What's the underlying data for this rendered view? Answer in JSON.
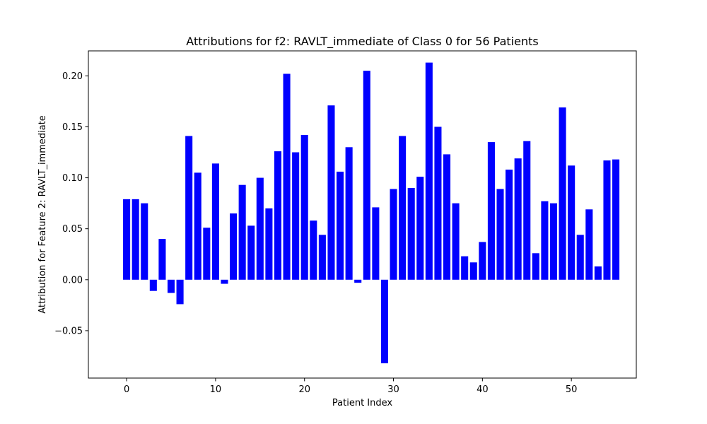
{
  "chart_data": {
    "type": "bar",
    "title": "Attributions for f2: RAVLT_immediate of Class 0 for 56 Patients",
    "xlabel": "Patient Index",
    "ylabel": "Attribution for Feature 2: RAVLT_immediate",
    "bar_color": "#0000ff",
    "xlim": [
      -4.3,
      57.3
    ],
    "ylim": [
      -0.0965,
      0.2245
    ],
    "xticks": [
      0,
      10,
      20,
      30,
      40,
      50
    ],
    "xtick_labels": [
      "0",
      "10",
      "20",
      "30",
      "40",
      "50"
    ],
    "yticks": [
      -0.05,
      0.0,
      0.05,
      0.1,
      0.15,
      0.2
    ],
    "ytick_labels": [
      "−0.05",
      "0.00",
      "0.05",
      "0.10",
      "0.15",
      "0.20"
    ],
    "grid": false,
    "x": [
      0,
      1,
      2,
      3,
      4,
      5,
      6,
      7,
      8,
      9,
      10,
      11,
      12,
      13,
      14,
      15,
      16,
      17,
      18,
      19,
      20,
      21,
      22,
      23,
      24,
      25,
      26,
      27,
      28,
      29,
      30,
      31,
      32,
      33,
      34,
      35,
      36,
      37,
      38,
      39,
      40,
      41,
      42,
      43,
      44,
      45,
      46,
      47,
      48,
      49,
      50,
      51,
      52,
      53,
      54,
      55
    ],
    "values": [
      0.079,
      0.079,
      0.075,
      -0.011,
      0.04,
      -0.013,
      -0.024,
      0.141,
      0.105,
      0.051,
      0.114,
      -0.004,
      0.065,
      0.093,
      0.053,
      0.1,
      0.07,
      0.126,
      0.202,
      0.125,
      0.142,
      0.058,
      0.044,
      0.171,
      0.106,
      0.13,
      -0.003,
      0.205,
      0.071,
      -0.082,
      0.089,
      0.141,
      0.09,
      0.101,
      0.213,
      0.15,
      0.123,
      0.075,
      0.023,
      0.017,
      0.037,
      0.135,
      0.089,
      0.108,
      0.119,
      0.136,
      0.026,
      0.077,
      0.075,
      0.169,
      0.112,
      0.044,
      0.069,
      0.013,
      0.117,
      0.118
    ]
  }
}
